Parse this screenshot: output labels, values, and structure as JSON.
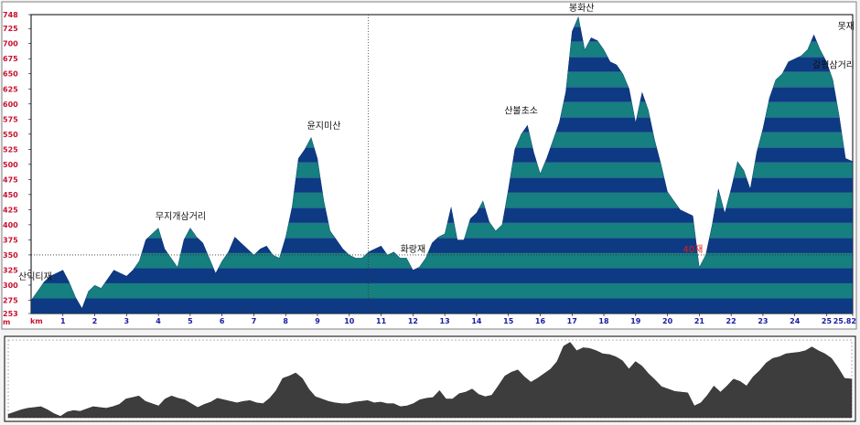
{
  "chart_data": {
    "type": "area",
    "title": "",
    "xlabel": "km",
    "ylabel": "m",
    "xlim": [
      0,
      25.82
    ],
    "ylim": [
      253,
      748
    ],
    "y_ticks": [
      "748",
      "725",
      "700",
      "675",
      "650",
      "625",
      "600",
      "575",
      "550",
      "525",
      "500",
      "475",
      "450",
      "425",
      "400",
      "375",
      "350",
      "325",
      "300",
      "275",
      "253"
    ],
    "x_ticks": [
      "1",
      "2",
      "3",
      "4",
      "5",
      "6",
      "7",
      "8",
      "9",
      "10",
      "11",
      "12",
      "13",
      "14",
      "15",
      "16",
      "17",
      "18",
      "19",
      "20",
      "21",
      "22",
      "23",
      "24",
      "25",
      "25.82"
    ],
    "x_unit": "km",
    "y_unit": "m",
    "reference_line_y": 350,
    "marker_x": 10.6,
    "band_colors": [
      "#0e3a83",
      "#167f7f"
    ],
    "series": [
      {
        "x": [
          0,
          0.2,
          0.4,
          0.6,
          0.8,
          1.0,
          1.2,
          1.4,
          1.6,
          1.8,
          2.0,
          2.2,
          2.4,
          2.6,
          2.8,
          3.0,
          3.2,
          3.4,
          3.6,
          3.8,
          4.0,
          4.2,
          4.4,
          4.6,
          4.8,
          5.0,
          5.2,
          5.4,
          5.6,
          5.8,
          6.0,
          6.2,
          6.4,
          6.6,
          6.8,
          7.0,
          7.2,
          7.4,
          7.6,
          7.8,
          8.0,
          8.2,
          8.4,
          8.6,
          8.8,
          9.0,
          9.2,
          9.4,
          9.6,
          9.8,
          10.0,
          10.2,
          10.4,
          10.6,
          10.8,
          11.0,
          11.2,
          11.4,
          11.6,
          11.8,
          12.0,
          12.2,
          12.4,
          12.6,
          12.8,
          13.0,
          13.2,
          13.4,
          13.6,
          13.8,
          14.0,
          14.2,
          14.4,
          14.6,
          14.8,
          15.0,
          15.2,
          15.4,
          15.6,
          15.8,
          16.0,
          16.2,
          16.4,
          16.6,
          16.8,
          17.0,
          17.2,
          17.4,
          17.6,
          17.8,
          18.0,
          18.2,
          18.4,
          18.6,
          18.8,
          19.0,
          19.2,
          19.4,
          19.6,
          19.8,
          20.0,
          20.2,
          20.4,
          20.6,
          20.8,
          21.0,
          21.2,
          21.4,
          21.6,
          21.8,
          22.0,
          22.2,
          22.4,
          22.6,
          22.8,
          23.0,
          23.2,
          23.4,
          23.6,
          23.8,
          24.0,
          24.2,
          24.4,
          24.6,
          24.8,
          25.0,
          25.2,
          25.4,
          25.6,
          25.82
        ],
        "y": [
          275,
          290,
          305,
          315,
          320,
          325,
          305,
          280,
          262,
          290,
          300,
          295,
          310,
          325,
          320,
          315,
          325,
          340,
          375,
          385,
          395,
          360,
          345,
          330,
          375,
          395,
          380,
          370,
          345,
          320,
          340,
          355,
          380,
          370,
          360,
          350,
          360,
          365,
          350,
          345,
          380,
          430,
          510,
          525,
          545,
          510,
          440,
          390,
          375,
          360,
          350,
          345,
          345,
          355,
          360,
          365,
          350,
          355,
          345,
          345,
          325,
          330,
          345,
          370,
          380,
          385,
          430,
          375,
          375,
          410,
          420,
          440,
          405,
          390,
          400,
          460,
          525,
          550,
          565,
          520,
          485,
          510,
          540,
          570,
          620,
          720,
          745,
          690,
          710,
          705,
          690,
          670,
          665,
          650,
          625,
          570,
          620,
          590,
          540,
          500,
          455,
          440,
          425,
          420,
          415,
          330,
          350,
          400,
          460,
          420,
          460,
          505,
          490,
          460,
          520,
          560,
          610,
          640,
          650,
          670,
          675,
          680,
          690,
          715,
          690,
          670,
          640,
          580,
          510,
          505
        ]
      }
    ],
    "annotations": [
      {
        "label": "산익티재",
        "x": 0.2,
        "y": 300
      },
      {
        "label": "무지개삼거리",
        "x": 4.7,
        "y": 400
      },
      {
        "label": "윤지미산",
        "x": 9.2,
        "y": 550
      },
      {
        "label": "화랑재",
        "x": 12.0,
        "y": 345
      },
      {
        "label": "산불초소",
        "x": 15.4,
        "y": 575
      },
      {
        "label": "봉화산",
        "x": 17.3,
        "y": 745
      },
      {
        "label": "40재",
        "x": 20.8,
        "y": 345
      },
      {
        "label": "못재",
        "x": 24.5,
        "y": 715
      },
      {
        "label": "갈평삼거리",
        "x": 25.1,
        "y": 650
      }
    ]
  }
}
